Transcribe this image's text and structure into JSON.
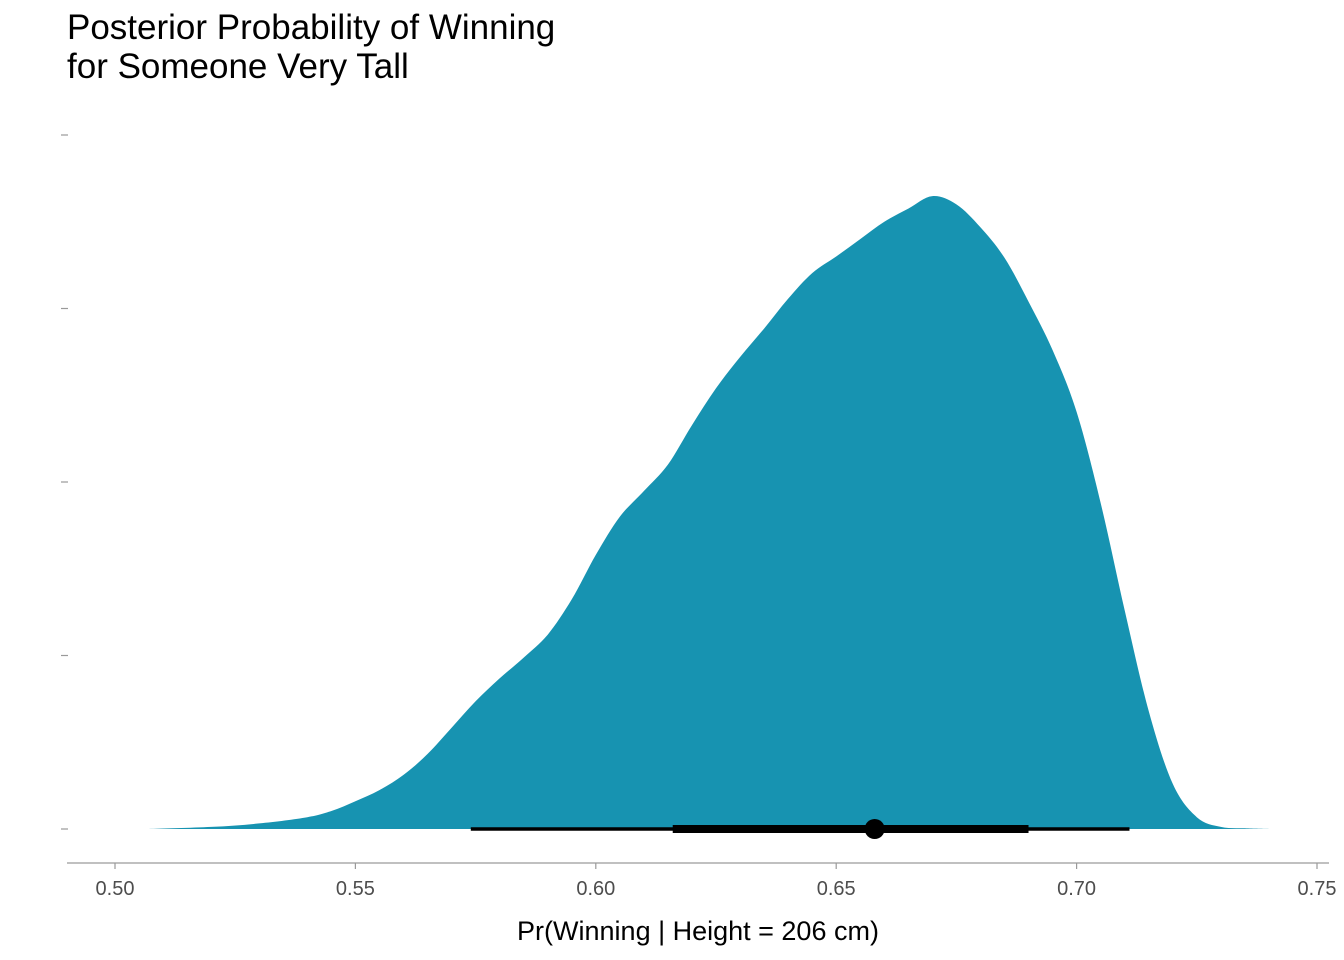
{
  "chart_data": {
    "type": "area",
    "title_lines": [
      "Posterior Probability of Winning",
      "for Someone Very Tall"
    ],
    "xlabel": "Pr(Winning | Height = 206 cm)",
    "ylabel": "",
    "xlim": [
      0.49,
      0.75
    ],
    "x_ticks": [
      0.5,
      0.55,
      0.6,
      0.65,
      0.7,
      0.75
    ],
    "x_tick_labels": [
      "0.50",
      "0.55",
      "0.60",
      "0.65",
      "0.70",
      "0.75"
    ],
    "y_ticks": [
      0,
      0.25,
      0.5,
      0.75,
      1.0
    ],
    "ylim": [
      0,
      1.0
    ],
    "fill_color": "#1793B1",
    "interval_color": "#000000",
    "density": {
      "x": [
        0.507,
        0.52,
        0.53,
        0.54,
        0.545,
        0.55,
        0.555,
        0.56,
        0.565,
        0.57,
        0.575,
        0.58,
        0.585,
        0.59,
        0.595,
        0.6,
        0.605,
        0.61,
        0.615,
        0.62,
        0.625,
        0.63,
        0.635,
        0.64,
        0.645,
        0.65,
        0.655,
        0.66,
        0.665,
        0.67,
        0.675,
        0.68,
        0.685,
        0.69,
        0.695,
        0.7,
        0.705,
        0.71,
        0.715,
        0.72,
        0.725,
        0.73,
        0.735,
        0.74
      ],
      "y": [
        0.0,
        0.003,
        0.008,
        0.017,
        0.026,
        0.04,
        0.056,
        0.078,
        0.108,
        0.146,
        0.184,
        0.217,
        0.247,
        0.28,
        0.331,
        0.395,
        0.45,
        0.487,
        0.525,
        0.582,
        0.635,
        0.68,
        0.721,
        0.764,
        0.801,
        0.825,
        0.85,
        0.875,
        0.894,
        0.912,
        0.9,
        0.867,
        0.823,
        0.76,
        0.69,
        0.601,
        0.47,
        0.315,
        0.17,
        0.065,
        0.017,
        0.003,
        0.001,
        0.0
      ]
    },
    "point_estimate": 0.658,
    "interval_inner": [
      0.616,
      0.69
    ],
    "interval_outer": [
      0.574,
      0.711
    ]
  }
}
